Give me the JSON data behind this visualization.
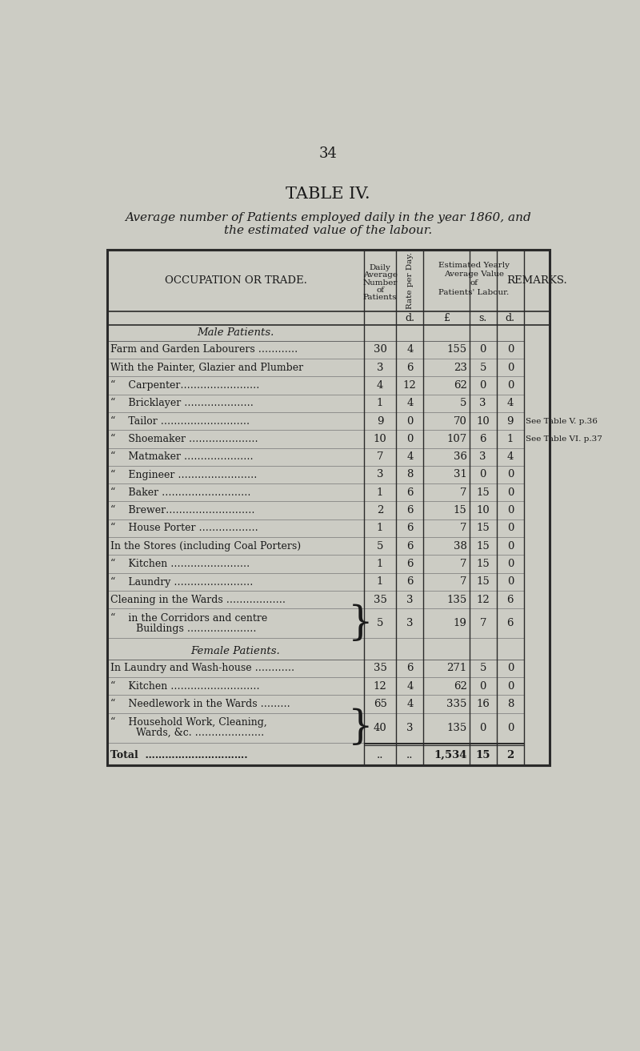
{
  "page_number": "34",
  "title": "TABLE IV.",
  "subtitle_line1": "Average number of Patients employed daily in the year 1860, and",
  "subtitle_line2": "the estimated value of the labour.",
  "bg_color": "#ccccc4",
  "text_color": "#1a1a1a",
  "section_male": "Male Patients.",
  "section_female": "Female Patients.",
  "rows_male": [
    {
      "occupation": "Farm and Garden Labourers …………",
      "num": "30",
      "rate": "4",
      "pounds": "155",
      "shillings": "0",
      "pence": "0",
      "remark": "",
      "brace": false,
      "multiline": false
    },
    {
      "occupation": "With the Painter, Glazier and Plumber",
      "num": "3",
      "rate": "6",
      "pounds": "23",
      "shillings": "5",
      "pence": "0",
      "remark": "",
      "brace": false,
      "multiline": false
    },
    {
      "occupation": "“    Carpenter……………………",
      "num": "4",
      "rate": "12",
      "pounds": "62",
      "shillings": "0",
      "pence": "0",
      "remark": "",
      "brace": false,
      "multiline": false
    },
    {
      "occupation": "“    Bricklayer …………………",
      "num": "1",
      "rate": "4",
      "pounds": "5",
      "shillings": "3",
      "pence": "4",
      "remark": "",
      "brace": false,
      "multiline": false
    },
    {
      "occupation": "“    Tailor ………………………",
      "num": "9",
      "rate": "0",
      "pounds": "70",
      "shillings": "10",
      "pence": "9",
      "remark": "See Table V. p.36",
      "brace": false,
      "multiline": false
    },
    {
      "occupation": "“    Shoemaker …………………",
      "num": "10",
      "rate": "0",
      "pounds": "107",
      "shillings": "6",
      "pence": "1",
      "remark": "See Table VI. p.37",
      "brace": false,
      "multiline": false
    },
    {
      "occupation": "“    Matmaker …………………",
      "num": "7",
      "rate": "4",
      "pounds": "36",
      "shillings": "3",
      "pence": "4",
      "remark": "",
      "brace": false,
      "multiline": false
    },
    {
      "occupation": "“    Engineer ……………………",
      "num": "3",
      "rate": "8",
      "pounds": "31",
      "shillings": "0",
      "pence": "0",
      "remark": "",
      "brace": false,
      "multiline": false
    },
    {
      "occupation": "“    Baker ………………………",
      "num": "1",
      "rate": "6",
      "pounds": "7",
      "shillings": "15",
      "pence": "0",
      "remark": "",
      "brace": false,
      "multiline": false
    },
    {
      "occupation": "“    Brewer………………………",
      "num": "2",
      "rate": "6",
      "pounds": "15",
      "shillings": "10",
      "pence": "0",
      "remark": "",
      "brace": false,
      "multiline": false
    },
    {
      "occupation": "“    House Porter ………………",
      "num": "1",
      "rate": "6",
      "pounds": "7",
      "shillings": "15",
      "pence": "0",
      "remark": "",
      "brace": false,
      "multiline": false
    },
    {
      "occupation": "In the Stores (including Coal Porters)",
      "num": "5",
      "rate": "6",
      "pounds": "38",
      "shillings": "15",
      "pence": "0",
      "remark": "",
      "brace": false,
      "multiline": false
    },
    {
      "occupation": "“    Kitchen ……………………",
      "num": "1",
      "rate": "6",
      "pounds": "7",
      "shillings": "15",
      "pence": "0",
      "remark": "",
      "brace": false,
      "multiline": false
    },
    {
      "occupation": "“    Laundry ……………………",
      "num": "1",
      "rate": "6",
      "pounds": "7",
      "shillings": "15",
      "pence": "0",
      "remark": "",
      "brace": false,
      "multiline": false
    },
    {
      "occupation": "Cleaning in the Wards ………………",
      "num": "35",
      "rate": "3",
      "pounds": "135",
      "shillings": "12",
      "pence": "6",
      "remark": "",
      "brace": false,
      "multiline": false
    },
    {
      "occupation_line1": "“    in the Corridors and centre ߕ",
      "occupation_line2": "        Buildings ………………… ߕ",
      "num": "5",
      "rate": "3",
      "pounds": "19",
      "shillings": "7",
      "pence": "6",
      "remark": "",
      "brace": true,
      "multiline": true
    }
  ],
  "rows_female": [
    {
      "occupation": "In Laundry and Wash-house …………",
      "num": "35",
      "rate": "6",
      "pounds": "271",
      "shillings": "5",
      "pence": "0",
      "remark": "",
      "brace": false,
      "multiline": false
    },
    {
      "occupation": "“    Kitchen ………………………",
      "num": "12",
      "rate": "4",
      "pounds": "62",
      "shillings": "0",
      "pence": "0",
      "remark": "",
      "brace": false,
      "multiline": false
    },
    {
      "occupation": "“    Needlework in the Wards ………",
      "num": "65",
      "rate": "4",
      "pounds": "335",
      "shillings": "16",
      "pence": "8",
      "remark": "",
      "brace": false,
      "multiline": false
    },
    {
      "occupation_line1": "“    Household Work, Cleaning, ߕ",
      "occupation_line2": "        Wards, &c. ………………… ߕ",
      "num": "40",
      "rate": "3",
      "pounds": "135",
      "shillings": "0",
      "pence": "0",
      "remark": "",
      "brace": true,
      "multiline": true
    }
  ],
  "total": {
    "pounds": "1,534",
    "shillings": "15",
    "pence": "2"
  }
}
